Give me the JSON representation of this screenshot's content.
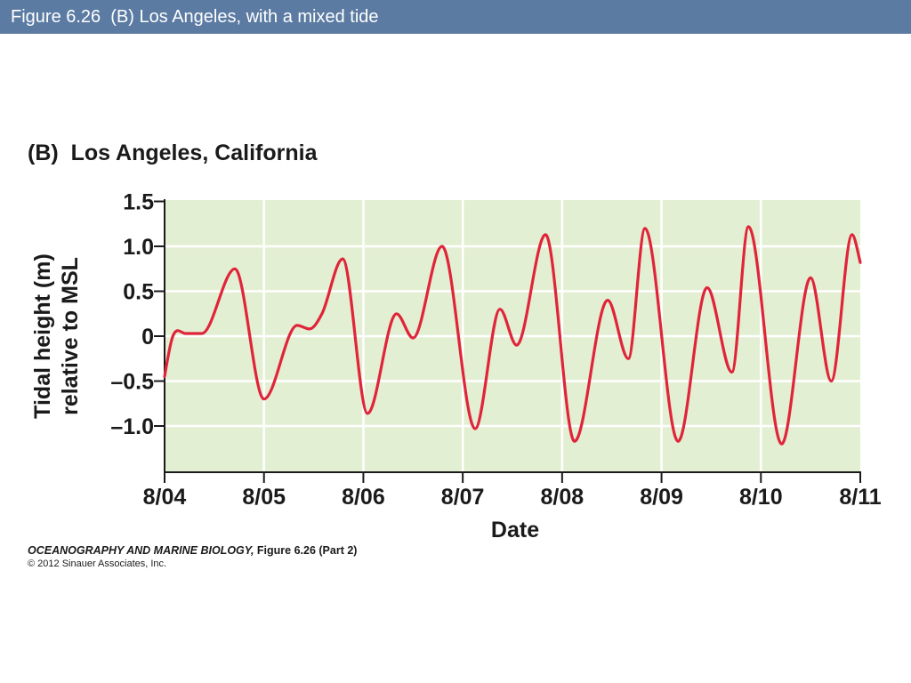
{
  "slide": {
    "title": "Figure 6.26  (B) Los Angeles, with a mixed tide",
    "credit_book": "OCEANOGRAPHY AND MARINE BIOLOGY,",
    "credit_figure": " Figure 6.26 (Part 2)",
    "copyright": "© 2012 Sinauer Associates, Inc."
  },
  "colors": {
    "title_bar": "#5b7ba3",
    "plot_background": "#e3efd2",
    "gridline": "#ffffff",
    "tide_line": "#e0243a"
  },
  "chart_data": {
    "type": "line",
    "title": "(B)  Los Angeles, California",
    "xlabel": "Date",
    "ylabel": [
      "Tidal height (m)",
      "relative to MSL"
    ],
    "x_ticks": [
      "8/04",
      "8/05",
      "8/06",
      "8/07",
      "8/08",
      "8/09",
      "8/10",
      "8/11"
    ],
    "y_ticks": [
      {
        "value": 1.5,
        "label": "1.5"
      },
      {
        "value": 1.0,
        "label": "1.0"
      },
      {
        "value": 0.5,
        "label": "0.5"
      },
      {
        "value": 0,
        "label": "0"
      },
      {
        "value": -0.5,
        "label": "–0.5"
      },
      {
        "value": -1.0,
        "label": "–1.0"
      }
    ],
    "ylim": [
      -1.5,
      1.5
    ],
    "xlim": [
      "2004-08-04T00:00",
      "2004-08-11T00:00"
    ],
    "grid": true,
    "series": [
      {
        "x": [
          "8/04 00:00",
          "8/04 02:00",
          "8/04 05:00",
          "8/04 09:00",
          "8/04 17:00",
          "8/05 00:00",
          "8/05 08:00",
          "8/05 11:00",
          "8/05 14:00",
          "8/05 19:00",
          "8/06 01:00",
          "8/06 08:00",
          "8/06 12:00",
          "8/06 19:00",
          "8/07 03:00",
          "8/07 09:00",
          "8/07 13:00",
          "8/07 20:00",
          "8/08 03:00",
          "8/08 11:00",
          "8/08 16:00",
          "8/08 20:00",
          "8/09 04:00",
          "8/09 11:00",
          "8/09 17:00",
          "8/09 21:00",
          "8/10 05:00",
          "8/10 12:00",
          "8/10 17:00",
          "8/10 22:00",
          "8/11 00:00"
        ],
        "y": [
          -0.45,
          0.0,
          0.03,
          0.03,
          0.75,
          -0.7,
          0.12,
          0.08,
          0.25,
          0.86,
          -0.86,
          0.25,
          -0.02,
          1.0,
          -1.03,
          0.3,
          -0.1,
          1.13,
          -1.17,
          0.4,
          -0.25,
          1.2,
          -1.17,
          0.54,
          -0.4,
          1.22,
          -1.2,
          0.65,
          -0.5,
          1.13,
          0.82
        ]
      }
    ]
  }
}
